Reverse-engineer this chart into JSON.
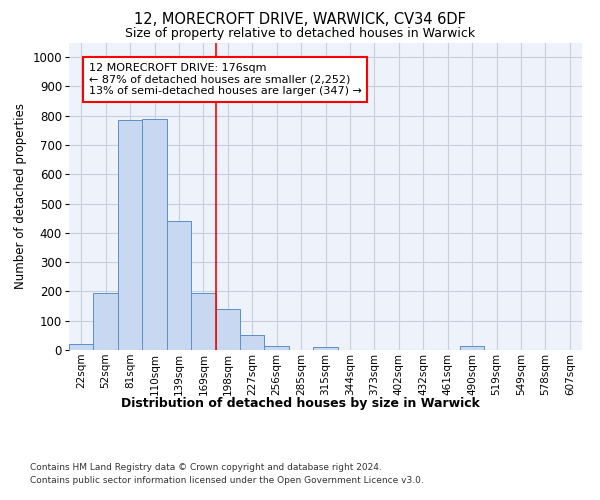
{
  "title1": "12, MORECROFT DRIVE, WARWICK, CV34 6DF",
  "title2": "Size of property relative to detached houses in Warwick",
  "xlabel": "Distribution of detached houses by size in Warwick",
  "ylabel": "Number of detached properties",
  "categories": [
    "22sqm",
    "52sqm",
    "81sqm",
    "110sqm",
    "139sqm",
    "169sqm",
    "198sqm",
    "227sqm",
    "256sqm",
    "285sqm",
    "315sqm",
    "344sqm",
    "373sqm",
    "402sqm",
    "432sqm",
    "461sqm",
    "490sqm",
    "519sqm",
    "549sqm",
    "578sqm",
    "607sqm"
  ],
  "values": [
    20,
    195,
    785,
    790,
    440,
    195,
    140,
    50,
    15,
    0,
    10,
    0,
    0,
    0,
    0,
    0,
    15,
    0,
    0,
    0,
    0
  ],
  "bar_color": "#c8d8f0",
  "bar_edge_color": "#5b8fc9",
  "red_line_index": 5.5,
  "annotation_line1": "12 MORECROFT DRIVE: 176sqm",
  "annotation_line2": "← 87% of detached houses are smaller (2,252)",
  "annotation_line3": "13% of semi-detached houses are larger (347) →",
  "ylim": [
    0,
    1050
  ],
  "yticks": [
    0,
    100,
    200,
    300,
    400,
    500,
    600,
    700,
    800,
    900,
    1000
  ],
  "grid_color": "#c8d0e0",
  "background_color": "#eef2fa",
  "footnote1": "Contains HM Land Registry data © Crown copyright and database right 2024.",
  "footnote2": "Contains public sector information licensed under the Open Government Licence v3.0."
}
